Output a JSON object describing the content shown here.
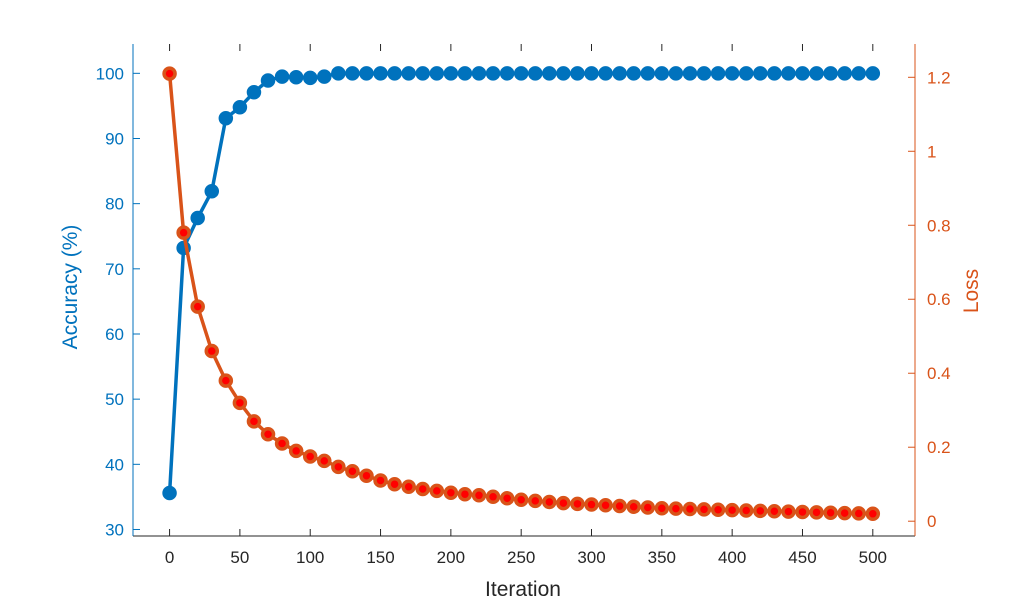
{
  "chart_data": {
    "type": "line",
    "title": "",
    "xlabel": "Iteration",
    "ylabel_left": "Accuracy (%)",
    "ylabel_right": "Loss",
    "xlim": [
      -26,
      530
    ],
    "ylim_left": [
      29,
      104.5
    ],
    "ylim_right": [
      -0.04,
      1.29
    ],
    "x_ticks": [
      0,
      50,
      100,
      150,
      200,
      250,
      300,
      350,
      400,
      450,
      500
    ],
    "y_left_ticks": [
      30,
      40,
      50,
      60,
      70,
      80,
      90,
      100
    ],
    "y_right_ticks": [
      0,
      0.2,
      0.4,
      0.6,
      0.8,
      1,
      1.2
    ],
    "grid": false,
    "legend": "none",
    "x": [
      0,
      10,
      20,
      30,
      40,
      50,
      60,
      70,
      80,
      90,
      100,
      110,
      120,
      130,
      140,
      150,
      160,
      170,
      180,
      190,
      200,
      210,
      220,
      230,
      240,
      250,
      260,
      270,
      280,
      290,
      300,
      310,
      320,
      330,
      340,
      350,
      360,
      370,
      380,
      390,
      400,
      410,
      420,
      430,
      440,
      450,
      460,
      470,
      480,
      490,
      500
    ],
    "series": [
      {
        "axis": "left",
        "color": "#0072BD",
        "marker_fill": "#0072BD",
        "values": [
          35.6,
          73.2,
          77.8,
          81.9,
          93.1,
          94.8,
          97.1,
          98.9,
          99.5,
          99.4,
          99.3,
          99.5,
          100,
          100,
          100,
          100,
          100,
          100,
          100,
          100,
          100,
          100,
          100,
          100,
          100,
          100,
          100,
          100,
          100,
          100,
          100,
          100,
          100,
          100,
          100,
          100,
          100,
          100,
          100,
          100,
          100,
          100,
          100,
          100,
          100,
          100,
          100,
          100,
          100,
          100,
          100
        ]
      },
      {
        "axis": "right",
        "color": "#D95319",
        "marker_fill": "#FF0000",
        "values": [
          1.21,
          0.78,
          0.58,
          0.46,
          0.38,
          0.32,
          0.27,
          0.235,
          0.21,
          0.19,
          0.175,
          0.163,
          0.147,
          0.135,
          0.123,
          0.11,
          0.1,
          0.093,
          0.087,
          0.082,
          0.077,
          0.073,
          0.07,
          0.066,
          0.062,
          0.058,
          0.055,
          0.052,
          0.049,
          0.047,
          0.045,
          0.043,
          0.041,
          0.039,
          0.037,
          0.035,
          0.034,
          0.033,
          0.032,
          0.031,
          0.03,
          0.029,
          0.028,
          0.027,
          0.026,
          0.025,
          0.024,
          0.023,
          0.022,
          0.021,
          0.02
        ]
      }
    ]
  }
}
